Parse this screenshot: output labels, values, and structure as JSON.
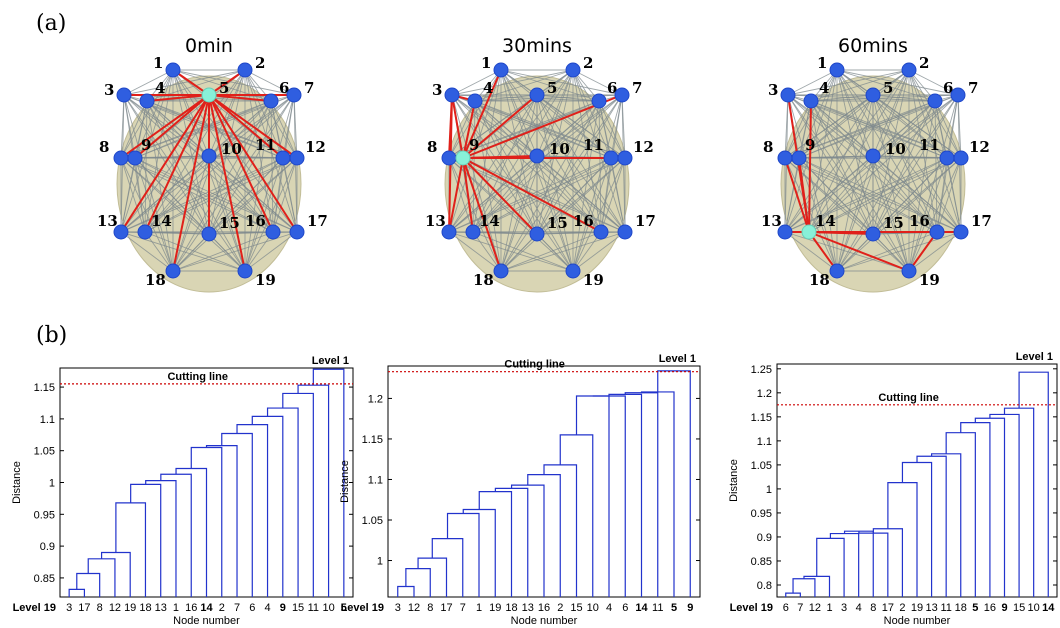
{
  "panel_labels": {
    "a": "(a)",
    "b": "(b)"
  },
  "networks": [
    {
      "title": "0min",
      "highlight_node": 5,
      "red_edges": [
        [
          5,
          1
        ],
        [
          5,
          2
        ],
        [
          5,
          3
        ],
        [
          5,
          4
        ],
        [
          5,
          6
        ],
        [
          5,
          7
        ],
        [
          5,
          8
        ],
        [
          5,
          9
        ],
        [
          5,
          10
        ],
        [
          5,
          11
        ],
        [
          5,
          12
        ],
        [
          5,
          13
        ],
        [
          5,
          14
        ],
        [
          5,
          15
        ],
        [
          5,
          16
        ],
        [
          5,
          17
        ],
        [
          5,
          18
        ],
        [
          5,
          19
        ]
      ]
    },
    {
      "title": "30mins",
      "highlight_node": 9,
      "red_edges": [
        [
          9,
          1
        ],
        [
          9,
          3
        ],
        [
          9,
          4
        ],
        [
          9,
          5
        ],
        [
          9,
          7
        ],
        [
          9,
          10
        ],
        [
          9,
          11
        ],
        [
          9,
          13
        ],
        [
          9,
          14
        ],
        [
          9,
          15
        ],
        [
          9,
          16
        ],
        [
          9,
          18
        ],
        [
          3,
          4
        ],
        [
          3,
          8
        ],
        [
          3,
          13
        ]
      ]
    },
    {
      "title": "60mins",
      "highlight_node": 14,
      "red_edges": [
        [
          14,
          4
        ],
        [
          14,
          13
        ],
        [
          14,
          15
        ],
        [
          14,
          16
        ],
        [
          14,
          17
        ],
        [
          14,
          18
        ],
        [
          14,
          19
        ],
        [
          14,
          9
        ],
        [
          14,
          3
        ],
        [
          14,
          8
        ],
        [
          16,
          19
        ]
      ]
    }
  ],
  "node_labels": [
    "1",
    "2",
    "3",
    "4",
    "5",
    "6",
    "7",
    "8",
    "9",
    "10",
    "11",
    "12",
    "13",
    "14",
    "15",
    "16",
    "17",
    "18",
    "19"
  ],
  "chart_data": [
    {
      "type": "dendrogram",
      "xlabel": "Node number",
      "ylabel": "Distance",
      "ylim": [
        0.82,
        1.18
      ],
      "yticks": [
        0.85,
        0.9,
        0.95,
        1,
        1.05,
        1.1,
        1.15
      ],
      "leaf_order": [
        "3",
        "17",
        "8",
        "12",
        "19",
        "18",
        "13",
        "1",
        "16",
        "14",
        "2",
        "7",
        "6",
        "4",
        "9",
        "15",
        "11",
        "10",
        "5"
      ],
      "bold_leaves": [
        "14",
        "9",
        "5"
      ],
      "merge_heights": [
        0.832,
        0.857,
        0.88,
        0.89,
        0.968,
        0.997,
        1.003,
        1.013,
        1.022,
        1.055,
        1.058,
        1.077,
        1.091,
        1.104,
        1.117,
        1.14,
        1.153,
        1.178
      ],
      "cutting_line": 1.155,
      "cutting_label": "Cutting line",
      "top_label": "Level 1",
      "bottom_label": "Level 19"
    },
    {
      "type": "dendrogram",
      "xlabel": "Node number",
      "ylabel": "Distance",
      "ylim": [
        0.955,
        1.24
      ],
      "yticks": [
        1,
        1.05,
        1.1,
        1.15,
        1.2
      ],
      "leaf_order": [
        "3",
        "12",
        "8",
        "17",
        "7",
        "1",
        "19",
        "18",
        "13",
        "16",
        "2",
        "15",
        "10",
        "4",
        "6",
        "14",
        "11",
        "5",
        "9"
      ],
      "bold_leaves": [
        "14",
        "5",
        "9"
      ],
      "merge_heights": [
        0.968,
        0.99,
        1.003,
        1.027,
        1.058,
        1.063,
        1.085,
        1.089,
        1.093,
        1.106,
        1.118,
        1.155,
        1.203,
        1.203,
        1.205,
        1.207,
        1.208,
        1.234
      ],
      "cutting_line": 1.233,
      "cutting_label": "Cutting line",
      "top_label": "Level 1",
      "bottom_label": "Level 19"
    },
    {
      "type": "dendrogram",
      "xlabel": "Node number",
      "ylabel": "Distance",
      "ylim": [
        0.775,
        1.26
      ],
      "yticks": [
        0.8,
        0.85,
        0.9,
        0.95,
        1,
        1.05,
        1.1,
        1.15,
        1.2,
        1.25
      ],
      "leaf_order": [
        "6",
        "7",
        "12",
        "1",
        "3",
        "4",
        "8",
        "17",
        "2",
        "19",
        "13",
        "11",
        "18",
        "5",
        "16",
        "9",
        "15",
        "10",
        "14"
      ],
      "bold_leaves": [
        "5",
        "9",
        "14"
      ],
      "merge_heights": [
        0.783,
        0.813,
        0.818,
        0.897,
        0.907,
        0.912,
        0.908,
        0.917,
        1.013,
        1.055,
        1.068,
        1.073,
        1.117,
        1.138,
        1.147,
        1.155,
        1.168,
        1.243
      ],
      "cutting_line": 1.175,
      "cutting_label": "Cutting line",
      "top_label": "Level 1",
      "bottom_label": "Level 19"
    }
  ]
}
